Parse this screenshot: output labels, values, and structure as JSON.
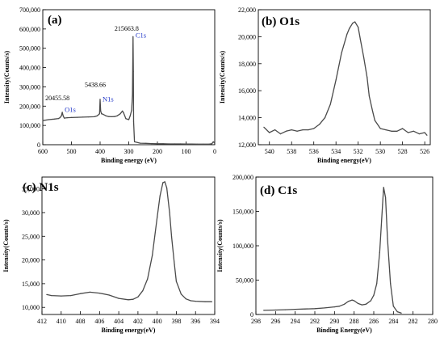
{
  "chart_data": [
    {
      "type": "line",
      "panel_label": "(a)",
      "xlabel": "Binding energy (eV)",
      "ylabel": "Intensity(Counts/s)",
      "xlim": [
        600,
        0
      ],
      "ylim": [
        0,
        700000
      ],
      "x_ticks": [
        "600",
        "500",
        "400",
        "300",
        "200",
        "100",
        "0"
      ],
      "y_ticks": [
        "0",
        "100,000",
        "200,000",
        "300,000",
        "400,000",
        "500,000",
        "600,000",
        "700,000"
      ],
      "series": [
        {
          "x": [
            600,
            580,
            560,
            545,
            540,
            535,
            532,
            529,
            525,
            515,
            500,
            480,
            460,
            440,
            420,
            410,
            402,
            400,
            398,
            395,
            390,
            380,
            370,
            360,
            350,
            340,
            330,
            322,
            318,
            314,
            310,
            300,
            295,
            290,
            287,
            285,
            284,
            283,
            280,
            260,
            240,
            220,
            200,
            180,
            160,
            140,
            120,
            100,
            80,
            60,
            40,
            20,
            10,
            5,
            0
          ],
          "y": [
            125000,
            130000,
            133000,
            136000,
            140000,
            150000,
            168000,
            150000,
            138000,
            140000,
            141000,
            142000,
            143000,
            144000,
            145000,
            150000,
            160000,
            235000,
            175000,
            160000,
            158000,
            150000,
            146000,
            145000,
            146000,
            150000,
            160000,
            175000,
            165000,
            150000,
            135000,
            130000,
            150000,
            180000,
            260000,
            560000,
            380000,
            120000,
            15000,
            8000,
            7000,
            6000,
            5000,
            5000,
            4000,
            4000,
            4000,
            3500,
            3500,
            3000,
            3000,
            3000,
            5000,
            15000,
            8000
          ]
        }
      ],
      "annotations": [
        {
          "text": "215663.8",
          "x": 285,
          "y": 590000
        },
        {
          "text": "C1s",
          "x": 285,
          "y": 555000
        },
        {
          "text": "5438.66",
          "x": 400,
          "y": 300000
        },
        {
          "text": "N1s",
          "x": 400,
          "y": 225000
        },
        {
          "text": "20455.58",
          "x": 532,
          "y": 230000
        },
        {
          "text": "O1s",
          "x": 532,
          "y": 170000
        }
      ]
    },
    {
      "type": "line",
      "panel_label": "(b) O1s",
      "xlabel": "Binding energy(eV)",
      "ylabel": "Intensity(Counts/s)",
      "xlim": [
        541,
        525.5
      ],
      "ylim": [
        12000,
        22000
      ],
      "x_ticks": [
        "540",
        "538",
        "536",
        "534",
        "532",
        "530",
        "528",
        "526"
      ],
      "y_ticks": [
        "12,000",
        "14,000",
        "16,000",
        "18,000",
        "20,000",
        "22,000"
      ],
      "series": [
        {
          "x": [
            540.5,
            540,
            539.5,
            539,
            538.5,
            538,
            537.5,
            537,
            536.5,
            536,
            535.5,
            535,
            534.5,
            534,
            533.5,
            533,
            532.8,
            532.5,
            532.3,
            532,
            531.8,
            531.5,
            531.2,
            531,
            530.7,
            530.5,
            530,
            529.5,
            529,
            528.5,
            528,
            527.5,
            527,
            526.5,
            526,
            525.8
          ],
          "y": [
            13300,
            12900,
            13100,
            12800,
            13000,
            13100,
            13000,
            13100,
            13100,
            13200,
            13500,
            14000,
            15000,
            16800,
            18800,
            20200,
            20600,
            21000,
            21100,
            20700,
            19800,
            18500,
            17000,
            15600,
            14500,
            13800,
            13200,
            13100,
            13000,
            13000,
            13200,
            12900,
            13000,
            12800,
            12900,
            12700
          ]
        }
      ]
    },
    {
      "type": "line",
      "panel_label": "(c) N1s",
      "xlabel": "Binding energy(eV)",
      "ylabel": "Intensity(Counts/s)",
      "xlim": [
        412,
        394
      ],
      "ylim": [
        8500,
        37500
      ],
      "x_ticks": [
        "412",
        "410",
        "408",
        "406",
        "404",
        "402",
        "400",
        "398",
        "396",
        "394"
      ],
      "y_ticks": [
        "10,000",
        "15,000",
        "20,000",
        "25,000",
        "30,000",
        "35,000"
      ],
      "series": [
        {
          "x": [
            411.5,
            411,
            410,
            409,
            408,
            407,
            406,
            405,
            404,
            403,
            402.5,
            402,
            401.5,
            401,
            400.5,
            400,
            399.7,
            399.4,
            399.2,
            399,
            398.7,
            398.5,
            398.2,
            398,
            397.5,
            397,
            396.5,
            396,
            395,
            394.3
          ],
          "y": [
            12700,
            12500,
            12400,
            12500,
            12900,
            13200,
            13000,
            12600,
            11900,
            11600,
            11700,
            12200,
            13500,
            16000,
            21000,
            29000,
            33500,
            36300,
            36500,
            35200,
            30000,
            25000,
            19000,
            15500,
            12800,
            11800,
            11400,
            11300,
            11200,
            11200
          ]
        }
      ]
    },
    {
      "type": "line",
      "panel_label": "(d) C1s",
      "xlabel": "Binding Energy(eV)",
      "ylabel": "Intensity(Counts/s)",
      "xlim": [
        298,
        280
      ],
      "ylim": [
        0,
        200000
      ],
      "x_ticks": [
        "298",
        "296",
        "294",
        "292",
        "290",
        "288",
        "286",
        "284",
        "282",
        "280"
      ],
      "y_ticks": [
        "0",
        "50,000",
        "100,000",
        "150,000",
        "200,000"
      ],
      "series": [
        {
          "x": [
            297.2,
            296,
            295,
            294,
            293,
            292,
            291,
            290,
            289.5,
            289,
            288.6,
            288.2,
            288,
            287.6,
            287.2,
            286.8,
            286.3,
            286,
            285.7,
            285.4,
            285.1,
            285,
            284.8,
            284.6,
            284.3,
            284,
            283.6,
            283.2
          ],
          "y": [
            6000,
            6500,
            7000,
            7500,
            8000,
            8500,
            9500,
            11000,
            12000,
            15000,
            19000,
            21000,
            20000,
            16000,
            14000,
            15000,
            20000,
            28000,
            45000,
            90000,
            160000,
            185000,
            170000,
            110000,
            45000,
            12000,
            4000,
            2000
          ]
        }
      ]
    }
  ]
}
